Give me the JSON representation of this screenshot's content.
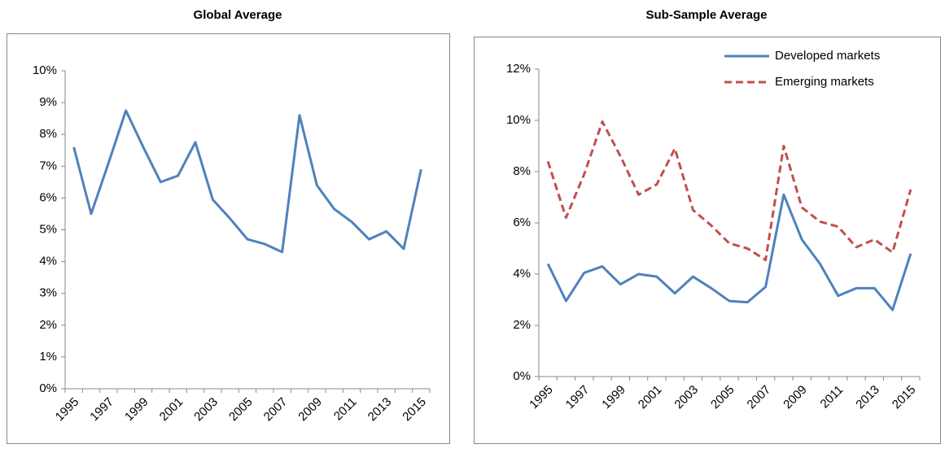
{
  "chart_data": [
    {
      "type": "line",
      "title": "Global Average",
      "categories": [
        "1995",
        null,
        "1997",
        null,
        "1999",
        null,
        "2001",
        null,
        "2003",
        null,
        "2005",
        null,
        "2007",
        null,
        "2009",
        null,
        "2011",
        null,
        "2013",
        null,
        "2015"
      ],
      "values": [
        7.6,
        5.5,
        7.1,
        8.75,
        7.6,
        6.5,
        6.7,
        7.75,
        5.95,
        5.35,
        4.7,
        4.55,
        4.3,
        8.6,
        6.4,
        5.65,
        5.25,
        4.7,
        4.95,
        4.4,
        6.9
      ],
      "color": "#4f81bd",
      "ylim": [
        0,
        10
      ],
      "yticks": [
        {
          "value": 0,
          "label": "0%"
        },
        {
          "value": 1,
          "label": "1%"
        },
        {
          "value": 2,
          "label": "2%"
        },
        {
          "value": 3,
          "label": "3%"
        },
        {
          "value": 4,
          "label": "4%"
        },
        {
          "value": 5,
          "label": "5%"
        },
        {
          "value": 6,
          "label": "6%"
        },
        {
          "value": 7,
          "label": "7%"
        },
        {
          "value": 8,
          "label": "8%"
        },
        {
          "value": 9,
          "label": "9%"
        },
        {
          "value": 10,
          "label": "10%"
        }
      ]
    },
    {
      "type": "line",
      "title": "Sub-Sample Average",
      "categories": [
        "1995",
        null,
        "1997",
        null,
        "1999",
        null,
        "2001",
        null,
        "2003",
        null,
        "2005",
        null,
        "2007",
        null,
        "2009",
        null,
        "2011",
        null,
        "2013",
        null,
        "2015"
      ],
      "series": [
        {
          "name": "Developed markets",
          "color": "#4f81bd",
          "dash": false,
          "values": [
            4.4,
            2.95,
            4.05,
            4.3,
            3.6,
            4.0,
            3.9,
            3.25,
            3.9,
            3.45,
            2.95,
            2.9,
            3.5,
            7.1,
            5.35,
            4.4,
            3.15,
            3.45,
            3.45,
            2.6,
            4.8
          ]
        },
        {
          "name": "Emerging markets",
          "color": "#c0504d",
          "dash": true,
          "values": [
            8.4,
            6.2,
            7.9,
            9.95,
            8.6,
            7.1,
            7.5,
            8.9,
            6.5,
            5.9,
            5.2,
            5.0,
            4.55,
            9.0,
            6.6,
            6.05,
            5.85,
            5.05,
            5.35,
            4.85,
            7.3
          ]
        }
      ],
      "legend": "upper right",
      "ylim": [
        0,
        12
      ],
      "yticks": [
        {
          "value": 0,
          "label": "0%"
        },
        {
          "value": 2,
          "label": "2%"
        },
        {
          "value": 4,
          "label": "4%"
        },
        {
          "value": 6,
          "label": "6%"
        },
        {
          "value": 8,
          "label": "8%"
        },
        {
          "value": 10,
          "label": "10%"
        },
        {
          "value": 12,
          "label": "12%"
        }
      ]
    }
  ]
}
